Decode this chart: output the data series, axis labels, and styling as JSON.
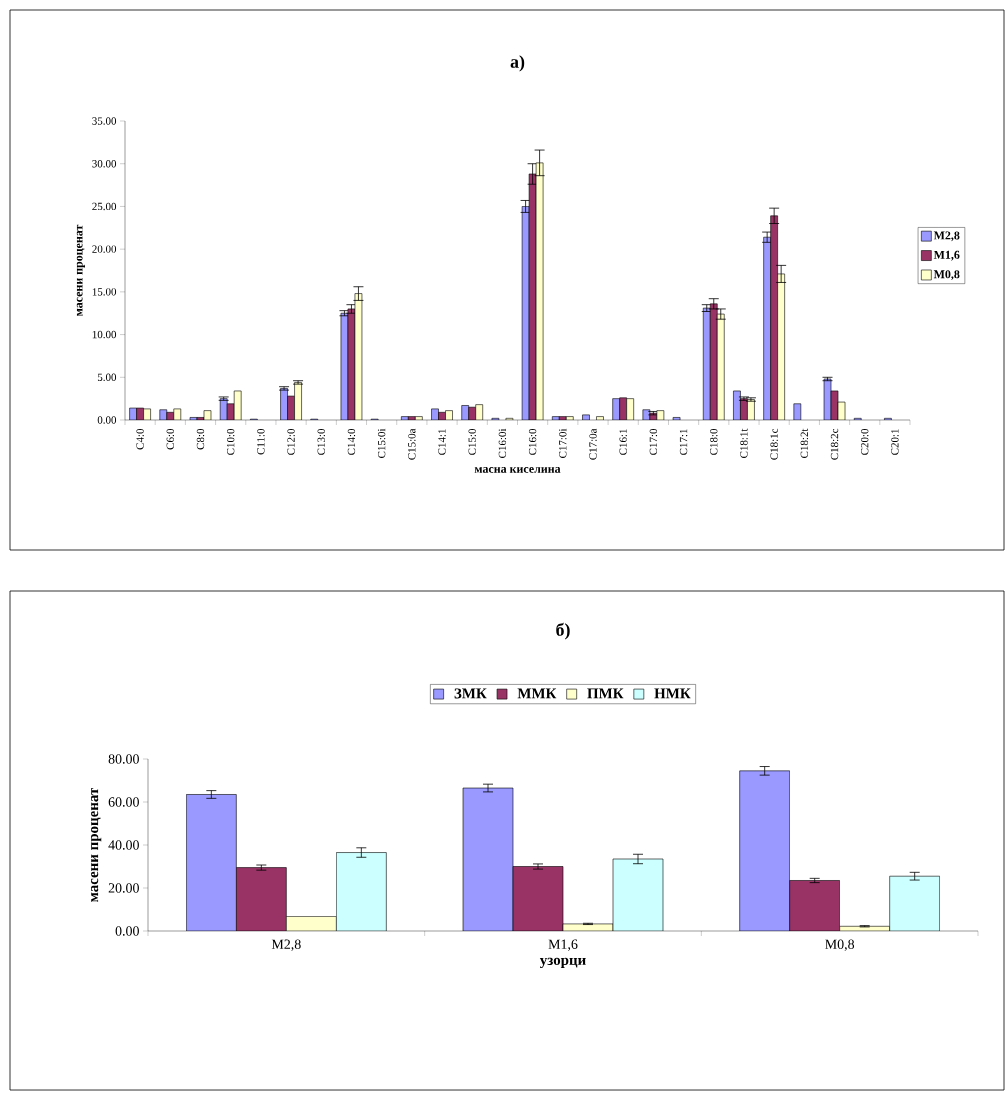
{
  "chart_data": [
    {
      "type": "bar",
      "title": "a)",
      "xlabel": "масна киселина",
      "ylabel": "масени проценат",
      "categories": [
        "C4:0",
        "C6:0",
        "C8:0",
        "C10:0",
        "C11:0",
        "C12:0",
        "C13:0",
        "C14:0",
        "C15:0i",
        "C15:0a",
        "C14:1",
        "C15:0",
        "C16:0i",
        "C16:0",
        "C17:0i",
        "C17:0a",
        "C16:1",
        "C17:0",
        "C17:1",
        "C18:0",
        "C18:1t",
        "C18:1c",
        "C18:2t",
        "C18:2c",
        "C20:0",
        "C20:1"
      ],
      "series": [
        {
          "name": "M2,8",
          "color": "#9999ff",
          "values": [
            1.4,
            1.2,
            0.3,
            2.5,
            0.1,
            3.7,
            0.1,
            12.5,
            0.1,
            0.4,
            1.3,
            1.7,
            0.2,
            25.0,
            0.4,
            0.6,
            2.5,
            1.2,
            0.3,
            13.1,
            3.4,
            21.4,
            1.9,
            4.8,
            0.2,
            0.2
          ],
          "errors": [
            null,
            null,
            null,
            0.2,
            null,
            0.2,
            null,
            0.3,
            null,
            null,
            null,
            null,
            null,
            0.7,
            null,
            null,
            null,
            null,
            null,
            0.4,
            null,
            0.6,
            null,
            0.2,
            null,
            null
          ]
        },
        {
          "name": "M1,6",
          "color": "#993366",
          "values": [
            1.4,
            0.9,
            0.3,
            1.9,
            null,
            2.8,
            null,
            13.0,
            null,
            0.4,
            0.9,
            1.5,
            null,
            28.8,
            0.4,
            null,
            2.6,
            0.8,
            null,
            13.6,
            2.5,
            23.9,
            null,
            3.4,
            null,
            null
          ],
          "errors": [
            null,
            null,
            null,
            null,
            null,
            null,
            null,
            0.5,
            null,
            null,
            null,
            null,
            null,
            1.2,
            null,
            null,
            null,
            0.2,
            null,
            0.6,
            0.2,
            0.9,
            null,
            null,
            null,
            null
          ]
        },
        {
          "name": "M0,8",
          "color": "#ffffcc",
          "values": [
            1.3,
            1.3,
            1.1,
            3.4,
            null,
            4.4,
            null,
            14.8,
            null,
            0.4,
            1.1,
            1.8,
            0.2,
            30.1,
            0.4,
            0.4,
            2.5,
            1.1,
            null,
            12.4,
            2.4,
            17.1,
            null,
            2.1,
            null,
            null
          ],
          "errors": [
            null,
            null,
            null,
            null,
            null,
            0.2,
            null,
            0.8,
            null,
            null,
            null,
            null,
            null,
            1.5,
            null,
            null,
            null,
            null,
            null,
            0.6,
            0.2,
            1.0,
            null,
            null,
            null,
            null
          ]
        }
      ],
      "ylim": [
        0,
        35
      ],
      "yticks": [
        {
          "value": 0,
          "label": "0.00"
        },
        {
          "value": 5,
          "label": "5.00"
        },
        {
          "value": 10,
          "label": "10.00"
        },
        {
          "value": 15,
          "label": "15.00"
        },
        {
          "value": 20,
          "label": "20.00"
        },
        {
          "value": 25,
          "label": "25.00"
        },
        {
          "value": 30,
          "label": "30.00"
        },
        {
          "value": 35,
          "label": "35.00"
        }
      ],
      "legend": "right"
    },
    {
      "type": "bar",
      "title": "б)",
      "xlabel": "узорци",
      "ylabel": "масени проценат",
      "categories": [
        "M2,8",
        "M1,6",
        "M0,8"
      ],
      "series": [
        {
          "name": "ЗМК",
          "color": "#9999ff",
          "values": [
            63.5,
            66.5,
            74.5
          ],
          "errors": [
            1.8,
            1.8,
            2.0
          ]
        },
        {
          "name": "ММК",
          "color": "#993366",
          "values": [
            29.5,
            30.0,
            23.5
          ],
          "errors": [
            1.2,
            1.2,
            1.0
          ]
        },
        {
          "name": "ПМК",
          "color": "#ffffcc",
          "values": [
            6.8,
            3.3,
            2.2
          ],
          "errors": [
            null,
            0.3,
            0.3
          ]
        },
        {
          "name": "НМК",
          "color": "#ccffff",
          "values": [
            36.5,
            33.5,
            25.5
          ],
          "errors": [
            2.2,
            2.2,
            1.8
          ]
        }
      ],
      "ylim": [
        0,
        80
      ],
      "yticks": [
        {
          "value": 0,
          "label": "0.00"
        },
        {
          "value": 20,
          "label": "20.00"
        },
        {
          "value": 40,
          "label": "40.00"
        },
        {
          "value": 60,
          "label": "60.00"
        },
        {
          "value": 80,
          "label": "80.00"
        }
      ],
      "legend": "top"
    }
  ]
}
